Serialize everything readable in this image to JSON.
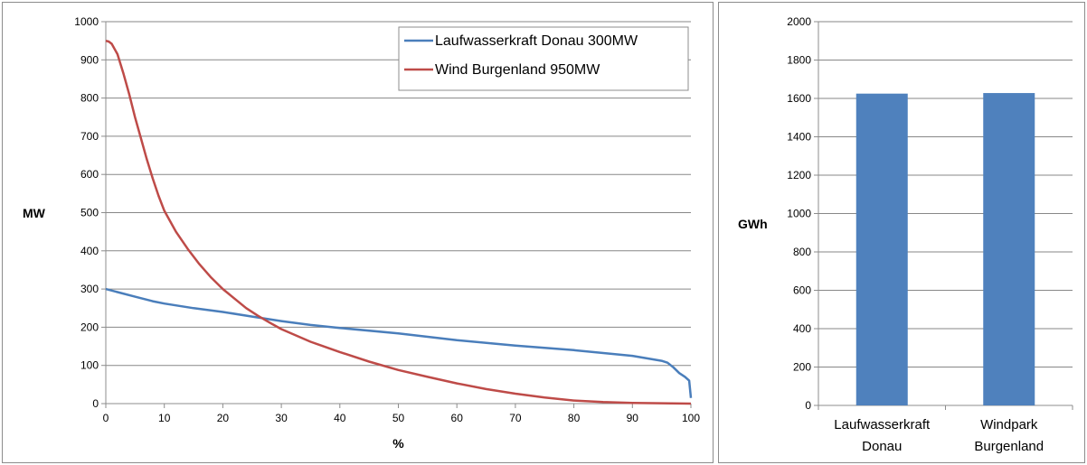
{
  "chart_data": [
    {
      "type": "line",
      "xlabel": "%",
      "ylabel": "MW",
      "xlim": [
        0,
        100
      ],
      "ylim": [
        0,
        1000
      ],
      "xticks": [
        0,
        10,
        20,
        30,
        40,
        50,
        60,
        70,
        80,
        90,
        100
      ],
      "yticks": [
        0,
        100,
        200,
        300,
        400,
        500,
        600,
        700,
        800,
        900,
        1000
      ],
      "grid": "horizontal",
      "legend_position": "top-right",
      "series": [
        {
          "name": "Laufwasserkraft Donau 300MW",
          "color": "#4a7ebb",
          "x": [
            0,
            2,
            5,
            8,
            10,
            15,
            20,
            25,
            30,
            35,
            40,
            50,
            60,
            70,
            80,
            90,
            95,
            96,
            97,
            98,
            99,
            99.7,
            100
          ],
          "y": [
            300,
            292,
            280,
            268,
            262,
            250,
            240,
            228,
            216,
            206,
            198,
            184,
            166,
            152,
            140,
            125,
            112,
            107,
            95,
            80,
            70,
            60,
            15
          ]
        },
        {
          "name": "Wind Burgenland 950MW",
          "color": "#be4b48",
          "x": [
            0,
            0.5,
            1,
            2,
            3,
            4,
            5,
            6,
            7,
            8,
            9,
            10,
            12,
            14,
            16,
            18,
            20,
            22,
            24,
            26,
            28,
            30,
            35,
            40,
            45,
            50,
            55,
            60,
            65,
            70,
            75,
            80,
            85,
            90,
            95,
            100
          ],
          "y": [
            950,
            948,
            942,
            915,
            865,
            810,
            750,
            695,
            640,
            590,
            545,
            505,
            450,
            405,
            365,
            330,
            300,
            275,
            250,
            230,
            212,
            195,
            162,
            135,
            110,
            88,
            70,
            53,
            38,
            26,
            16,
            8,
            4,
            2,
            1,
            0
          ]
        }
      ]
    },
    {
      "type": "bar",
      "ylabel": "GWh",
      "categories": [
        "Laufwasserkraft Donau",
        "Windpark Burgenland"
      ],
      "category_lines": [
        [
          "Laufwasserkraft",
          "Donau"
        ],
        [
          "Windpark",
          "Burgenland"
        ]
      ],
      "values": [
        1625,
        1628
      ],
      "ylim": [
        0,
        2000
      ],
      "yticks": [
        0,
        200,
        400,
        600,
        800,
        1000,
        1200,
        1400,
        1600,
        1800,
        2000
      ],
      "grid": "horizontal",
      "color": "#4f81bd"
    }
  ]
}
